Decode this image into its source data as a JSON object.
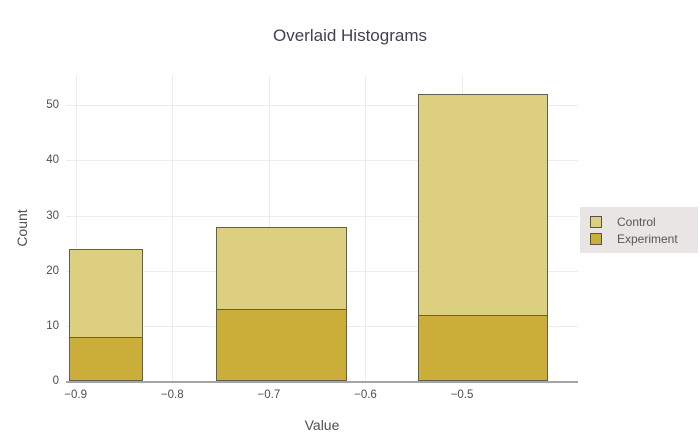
{
  "title": "Overlaid Histograms",
  "chart_data": {
    "type": "bar",
    "subtype": "overlaid-histogram",
    "title": "Overlaid Histograms",
    "xlabel": "Value",
    "ylabel": "Count",
    "xlim": [
      -0.91,
      -0.38
    ],
    "ylim": [
      0,
      55.5
    ],
    "x_ticks": [
      -0.9,
      -0.8,
      -0.7,
      -0.6,
      -0.5
    ],
    "x_tick_labels": [
      "−0.9",
      "−0.8",
      "−0.7",
      "−0.6",
      "−0.5"
    ],
    "y_ticks": [
      0,
      10,
      20,
      30,
      40,
      50
    ],
    "y_tick_labels": [
      "0",
      "10",
      "20",
      "30",
      "40",
      "50"
    ],
    "grid": true,
    "legend_position": "right-middle",
    "bins": [
      {
        "x0": -0.907,
        "x1": -0.83
      },
      {
        "x0": -0.755,
        "x1": -0.619
      },
      {
        "x0": -0.546,
        "x1": -0.411
      }
    ],
    "series": [
      {
        "name": "Control",
        "values": [
          24,
          28,
          52
        ],
        "color": "#ddcf80"
      },
      {
        "name": "Experiment",
        "values": [
          8,
          13,
          12
        ],
        "color": "#cbad3a"
      }
    ]
  },
  "colors": {
    "background": "#ffffff",
    "control_fill": "#ddcf80",
    "experiment_fill": "#cbad3a",
    "bar_border": "#61604f",
    "gridline": "#ececec",
    "zeroline": "#a5a5a5",
    "title_text": "#3f4150",
    "tick_text": "#4f4f4f",
    "legend_bg": "#e9e5e5",
    "legend_text": "#565656"
  }
}
